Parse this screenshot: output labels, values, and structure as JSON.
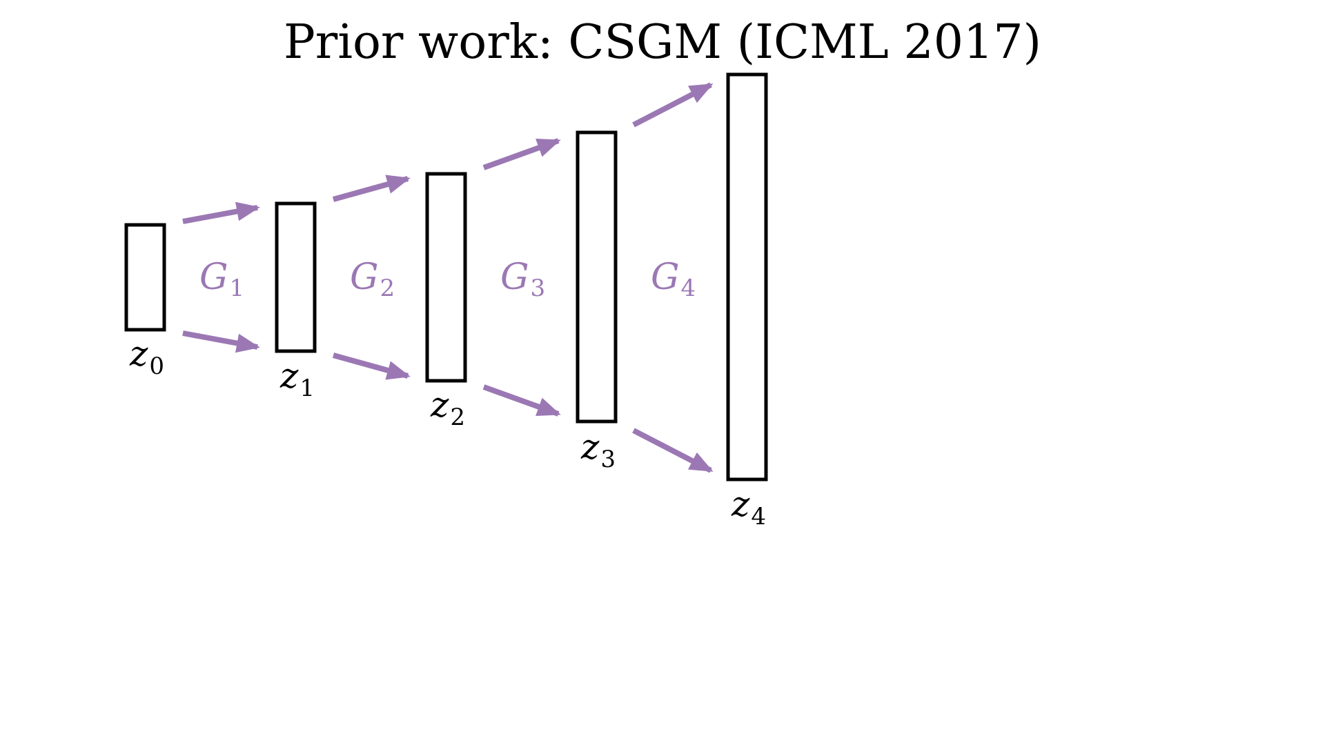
{
  "title": "Prior work: CSGM (ICML 2017)",
  "colors": {
    "arrow": "#9b78b4",
    "generator_label": "#9b78b4",
    "box_stroke": "#000000",
    "background": "#ffffff"
  },
  "latents": [
    {
      "symbol": "z",
      "subscript": "0"
    },
    {
      "symbol": "z",
      "subscript": "1"
    },
    {
      "symbol": "z",
      "subscript": "2"
    },
    {
      "symbol": "z",
      "subscript": "3"
    },
    {
      "symbol": "z",
      "subscript": "4"
    }
  ],
  "generators": [
    {
      "symbol": "G",
      "subscript": "1"
    },
    {
      "symbol": "G",
      "subscript": "2"
    },
    {
      "symbol": "G",
      "subscript": "3"
    },
    {
      "symbol": "G",
      "subscript": "4"
    }
  ]
}
